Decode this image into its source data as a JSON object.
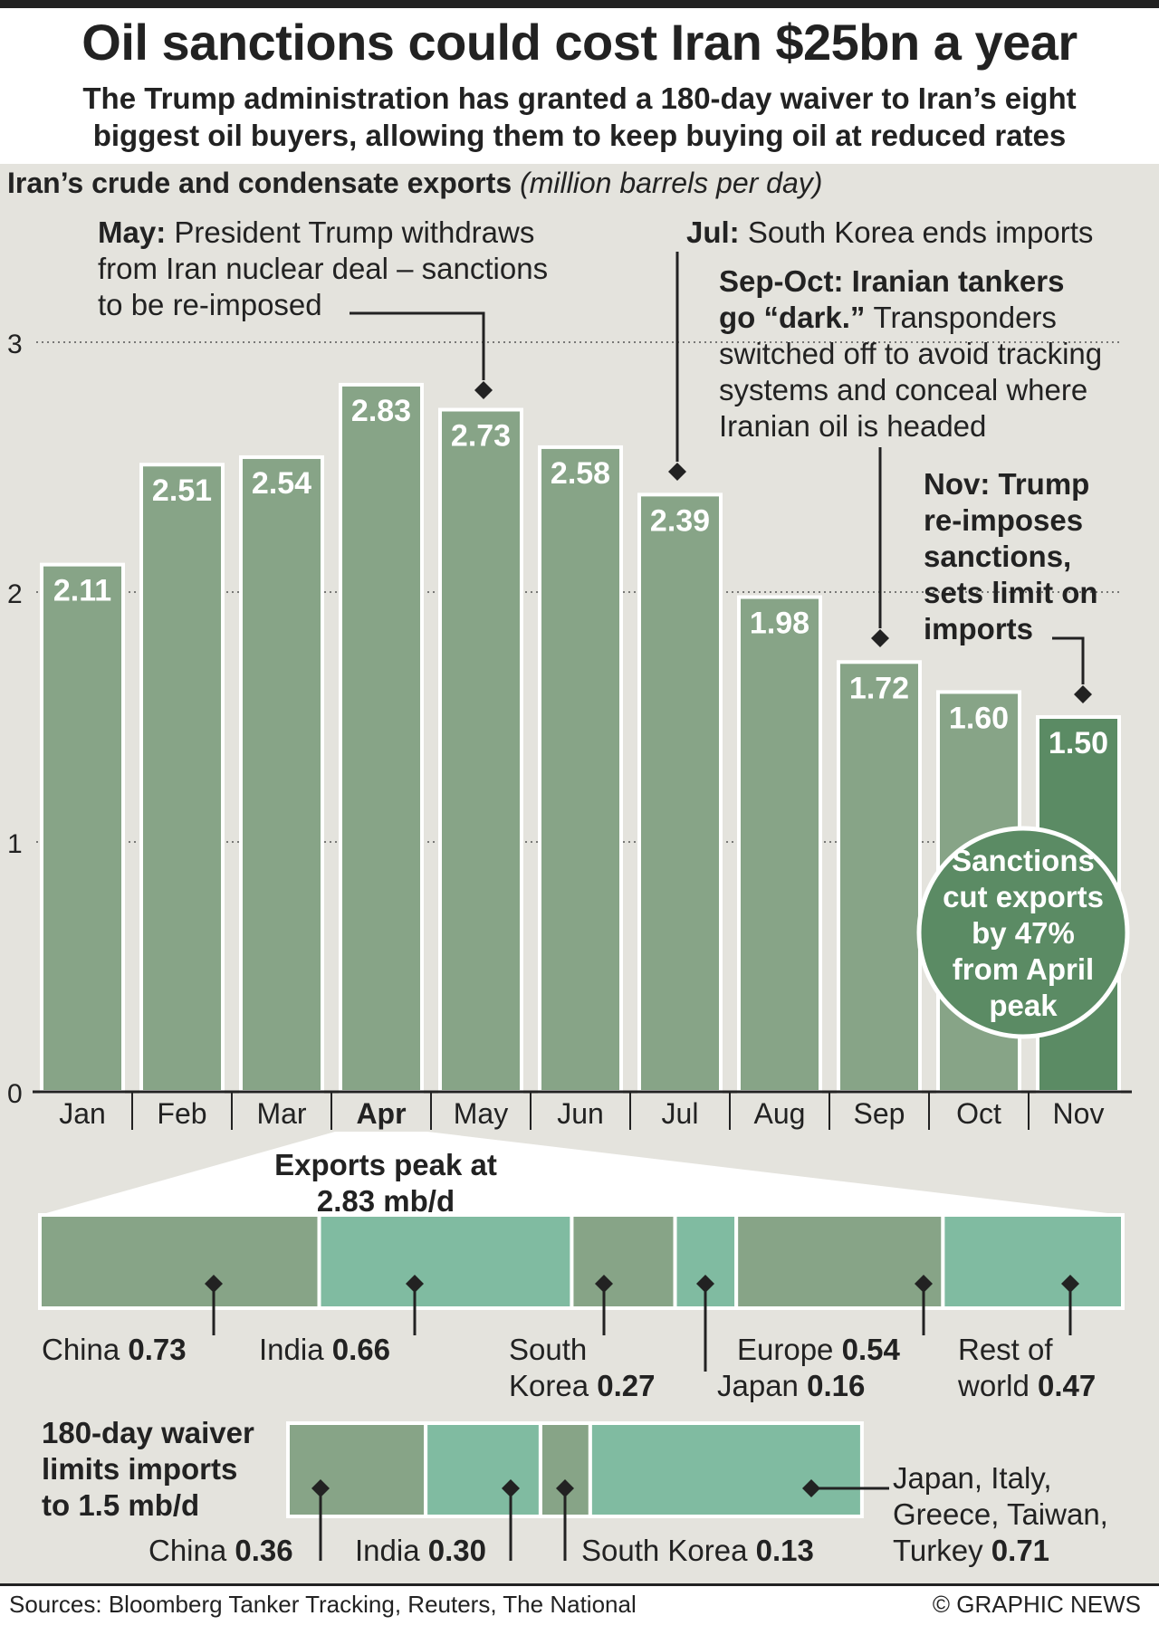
{
  "header": {
    "title": "Oil sanctions could cost Iran $25bn a year",
    "subtitle": "The Trump administration has granted a 180-day waiver to Iran’s eight biggest oil buyers, allowing them to keep buying oil at reduced rates"
  },
  "chart_heading": {
    "bold": "Iran’s crude and condensate exports",
    "italic": "(million barrels per day)"
  },
  "colors": {
    "bar": "#87a487",
    "bar_highlight": "#5b8b64",
    "teal": "#80bba1",
    "panel": "#e4e3dd",
    "text": "#222222"
  },
  "chart_data": {
    "type": "bar",
    "title": "Iran’s crude and condensate exports",
    "ylabel": "(million barrels per day)",
    "categories": [
      "Jan",
      "Feb",
      "Mar",
      "Apr",
      "May",
      "Jun",
      "Jul",
      "Aug",
      "Sep",
      "Oct",
      "Nov"
    ],
    "values": [
      2.11,
      2.51,
      2.54,
      2.83,
      2.73,
      2.58,
      2.39,
      1.98,
      1.72,
      1.6,
      1.5
    ],
    "value_labels": [
      "2.11",
      "2.51",
      "2.54",
      "2.83",
      "2.73",
      "2.58",
      "2.39",
      "1.98",
      "1.72",
      "1.60",
      "1.50"
    ],
    "highlight_category": "Apr",
    "highlight_bar": "Nov",
    "ylim": [
      0,
      3
    ],
    "yticks": [
      "0",
      "1",
      "2",
      "3"
    ],
    "grid": "dotted horizontal",
    "annotations": [
      {
        "month": "May",
        "bold": "May:",
        "text": "President Trump withdraws from Iran nuclear deal – sanctions to be re-imposed"
      },
      {
        "month": "Jul",
        "bold": "Jul:",
        "text": "South Korea ends imports"
      },
      {
        "month": "Sep",
        "bold": "Sep-Oct: Iranian tankers go “dark.”",
        "text": "Transponders switched off to avoid tracking systems and conceal where Iranian oil is headed"
      },
      {
        "month": "Nov",
        "bold": "Nov: Trump re-imposes sanctions, sets limit on imports",
        "text": ""
      }
    ],
    "callout": "Sanctions cut exports by 47% from April peak"
  },
  "breakdown_peak": {
    "label": "Exports peak at 2.83 mb/d",
    "total": 2.83,
    "segments": [
      {
        "name": "China",
        "value": 0.73,
        "value_label": "0.73",
        "color": "bar"
      },
      {
        "name": "India",
        "value": 0.66,
        "value_label": "0.66",
        "color": "teal"
      },
      {
        "name": "South Korea",
        "value": 0.27,
        "value_label": "0.27",
        "color": "bar"
      },
      {
        "name": "Japan",
        "value": 0.16,
        "value_label": "0.16",
        "color": "teal"
      },
      {
        "name": "Europe",
        "value": 0.54,
        "value_label": "0.54",
        "color": "bar"
      },
      {
        "name": "Rest of world",
        "value": 0.47,
        "value_label": "0.47",
        "color": "teal"
      }
    ]
  },
  "breakdown_waiver": {
    "label": "180-day waiver limits imports to 1.5 mb/d",
    "total": 1.5,
    "segments": [
      {
        "name": "China",
        "value": 0.36,
        "value_label": "0.36",
        "color": "bar"
      },
      {
        "name": "India",
        "value": 0.3,
        "value_label": "0.30",
        "color": "teal"
      },
      {
        "name": "South Korea",
        "value": 0.13,
        "value_label": "0.13",
        "color": "bar"
      },
      {
        "name": "Japan, Italy, Greece, Taiwan, Turkey",
        "value": 0.71,
        "value_label": "0.71",
        "color": "teal"
      }
    ]
  },
  "footer": {
    "sources": "Sources: Bloomberg Tanker Tracking, Reuters, The National",
    "credit": "© GRAPHIC NEWS"
  }
}
